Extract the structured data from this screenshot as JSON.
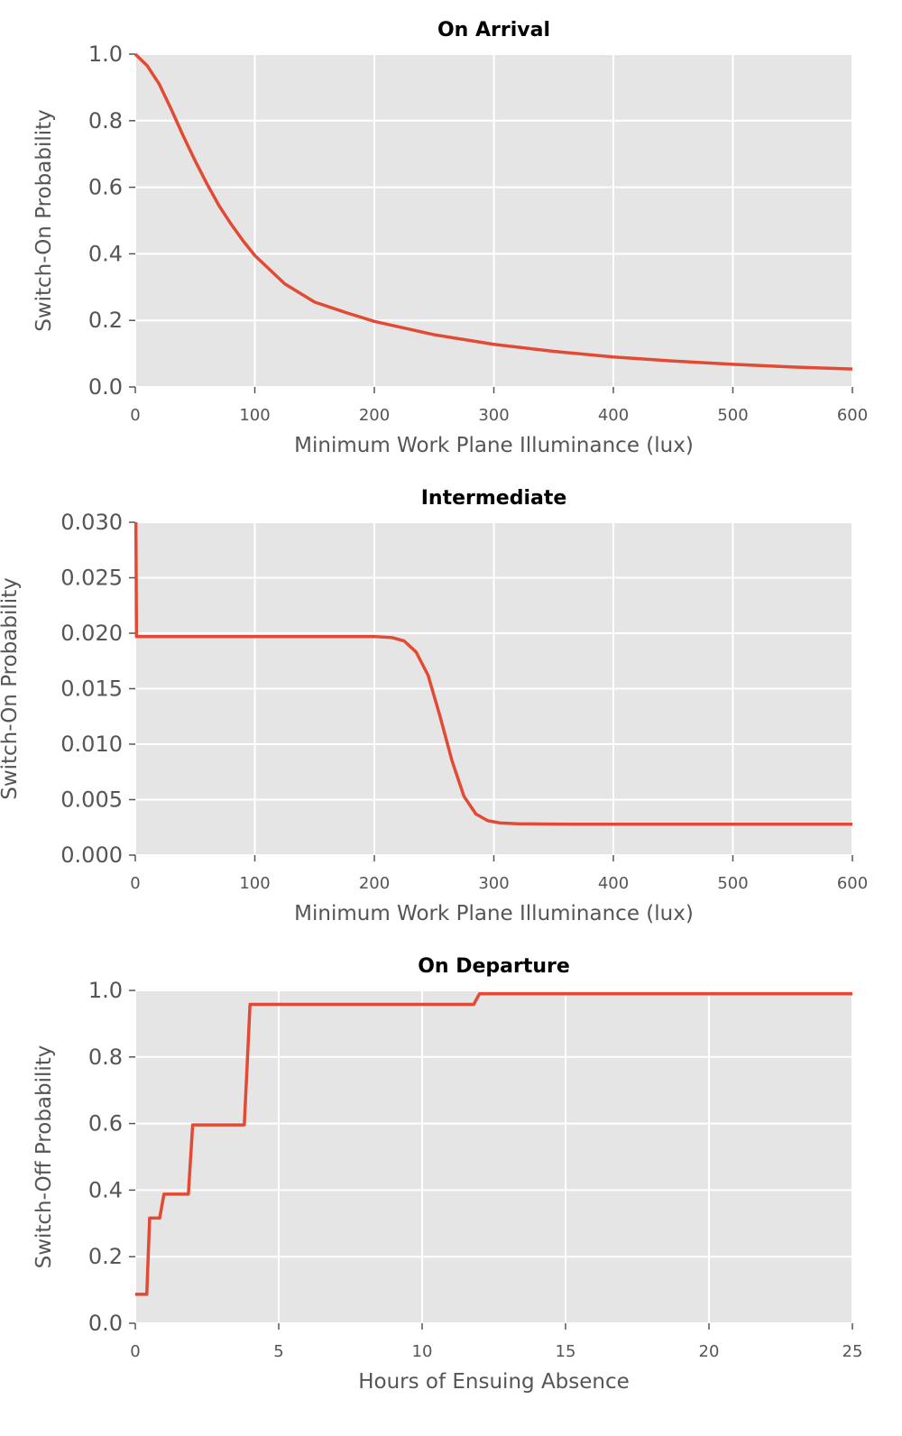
{
  "chart_data": [
    {
      "type": "line",
      "title": "On Arrival",
      "xlabel": "Minimum Work Plane Illuminance (lux)",
      "ylabel": "Switch-On Probability",
      "xlim": [
        0,
        600
      ],
      "ylim": [
        0,
        1.0
      ],
      "xticks": [
        0,
        100,
        200,
        300,
        400,
        500,
        600
      ],
      "yticks": [
        0.0,
        0.2,
        0.4,
        0.6,
        0.8,
        1.0
      ],
      "xtick_labels": [
        "0",
        "100",
        "200",
        "300",
        "400",
        "500",
        "600"
      ],
      "ytick_labels": [
        "0.0",
        "0.2",
        "0.4",
        "0.6",
        "0.8",
        "1.0"
      ],
      "grid": true,
      "color": "#E24A33",
      "series": [
        {
          "name": "On Arrival",
          "x": [
            0,
            10,
            20,
            30,
            40,
            50,
            60,
            70,
            80,
            90,
            100,
            125,
            150,
            175,
            200,
            250,
            300,
            350,
            400,
            450,
            500,
            550,
            600
          ],
          "y": [
            1.0,
            0.965,
            0.91,
            0.835,
            0.755,
            0.68,
            0.61,
            0.545,
            0.49,
            0.44,
            0.395,
            0.31,
            0.255,
            0.225,
            0.197,
            0.157,
            0.128,
            0.107,
            0.09,
            0.078,
            0.068,
            0.06,
            0.054
          ]
        }
      ]
    },
    {
      "type": "line",
      "title": "Intermediate",
      "xlabel": "Minimum Work Plane Illuminance (lux)",
      "ylabel": "Switch-On Probability",
      "xlim": [
        0,
        600
      ],
      "ylim": [
        0,
        0.03
      ],
      "xticks": [
        0,
        100,
        200,
        300,
        400,
        500,
        600
      ],
      "yticks": [
        0.0,
        0.005,
        0.01,
        0.015,
        0.02,
        0.025,
        0.03
      ],
      "xtick_labels": [
        "0",
        "100",
        "200",
        "300",
        "400",
        "500",
        "600"
      ],
      "ytick_labels": [
        "0.000",
        "0.005",
        "0.010",
        "0.015",
        "0.020",
        "0.025",
        "0.030"
      ],
      "grid": true,
      "color": "#E24A33",
      "series": [
        {
          "name": "Intermediate",
          "x": [
            0.5,
            1,
            50,
            100,
            150,
            200,
            215,
            225,
            235,
            245,
            255,
            265,
            275,
            285,
            295,
            305,
            320,
            350,
            400,
            500,
            600
          ],
          "y": [
            0.03,
            0.0197,
            0.0197,
            0.0197,
            0.0197,
            0.0197,
            0.0196,
            0.0193,
            0.0183,
            0.0162,
            0.0125,
            0.0085,
            0.0053,
            0.0037,
            0.0031,
            0.0029,
            0.00282,
            0.00279,
            0.00278,
            0.00278,
            0.00278
          ]
        }
      ]
    },
    {
      "type": "line",
      "title": "On Departure",
      "xlabel": "Hours of Ensuing Absence",
      "ylabel": "Switch-Off Probability",
      "xlim": [
        0,
        25
      ],
      "ylim": [
        0,
        1.0
      ],
      "xticks": [
        0,
        5,
        10,
        15,
        20,
        25
      ],
      "yticks": [
        0.0,
        0.2,
        0.4,
        0.6,
        0.8,
        1.0
      ],
      "xtick_labels": [
        "0",
        "5",
        "10",
        "15",
        "20",
        "25"
      ],
      "ytick_labels": [
        "0.0",
        "0.2",
        "0.4",
        "0.6",
        "0.8",
        "1.0"
      ],
      "grid": true,
      "color": "#E24A33",
      "series": [
        {
          "name": "On Departure",
          "x": [
            0,
            0.4,
            0.5,
            0.85,
            1.0,
            1.85,
            2.0,
            3.8,
            4.0,
            11.8,
            12.0,
            25
          ],
          "y": [
            0.087,
            0.087,
            0.316,
            0.316,
            0.388,
            0.388,
            0.596,
            0.596,
            0.958,
            0.958,
            0.99,
            0.99
          ]
        }
      ]
    }
  ]
}
